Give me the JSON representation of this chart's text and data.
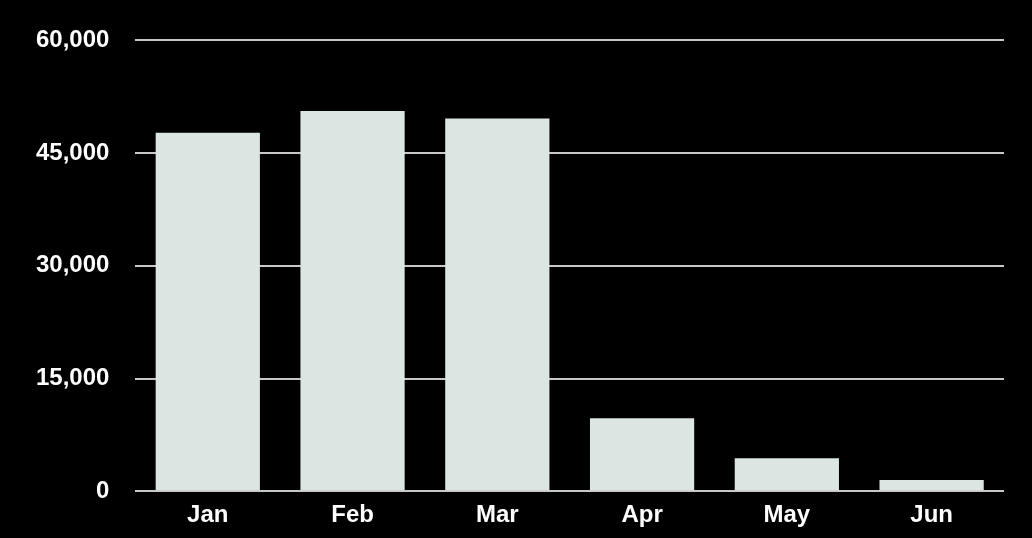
{
  "chart_data": {
    "type": "bar",
    "categories": [
      "Jan",
      "Feb",
      "Mar",
      "Apr",
      "May",
      "Jun"
    ],
    "values": [
      47700,
      50600,
      49600,
      9700,
      4400,
      1500
    ],
    "color": "#dbe5e1",
    "ylim": [
      0,
      60000
    ],
    "yticks": [
      {
        "value": 0,
        "label": "0"
      },
      {
        "value": 15000,
        "label": "15,000"
      },
      {
        "value": 30000,
        "label": "30,000"
      },
      {
        "value": 45000,
        "label": "45,000"
      },
      {
        "value": 60000,
        "label": "60,000"
      }
    ],
    "grid": "y",
    "legend": false
  }
}
